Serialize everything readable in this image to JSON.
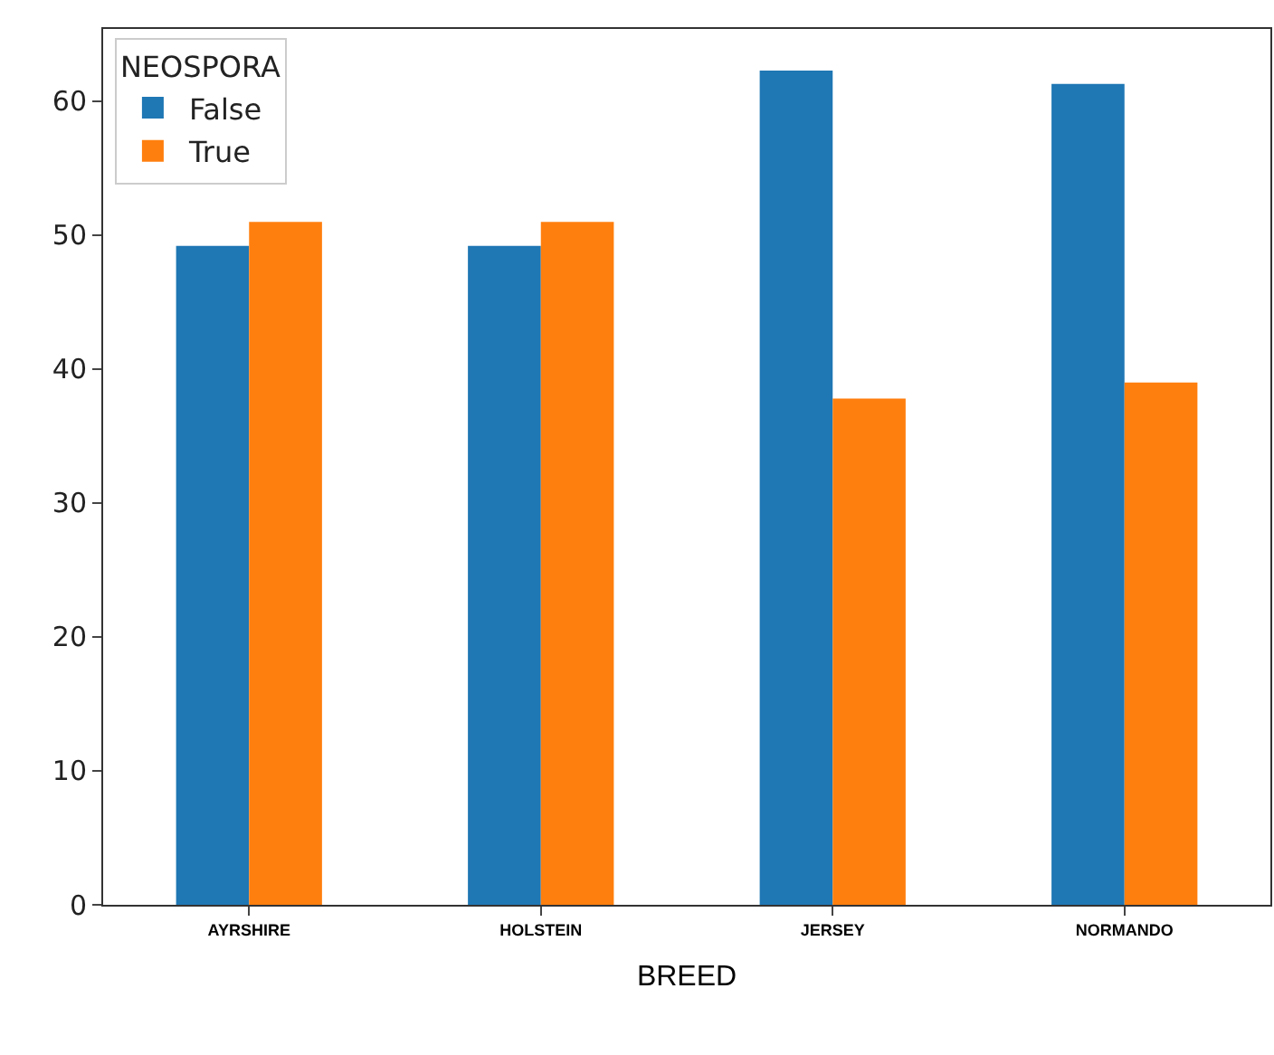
{
  "chart_data": {
    "type": "bar",
    "xlabel": "BREED",
    "legend_title": "NEOSPORA",
    "categories": [
      "AYRSHIRE",
      "HOLSTEIN",
      "JERSEY",
      "NORMANDO"
    ],
    "series": [
      {
        "name": "False",
        "color": "#1f77b4",
        "values": [
          49.2,
          49.2,
          62.3,
          61.3
        ]
      },
      {
        "name": "True",
        "color": "#ff7f0e",
        "values": [
          51.0,
          51.0,
          37.8,
          39.0
        ]
      }
    ],
    "ylim": [
      0,
      65.4
    ],
    "yticks": [
      0,
      10,
      20,
      30,
      40,
      50,
      60
    ],
    "legend": "top left"
  }
}
